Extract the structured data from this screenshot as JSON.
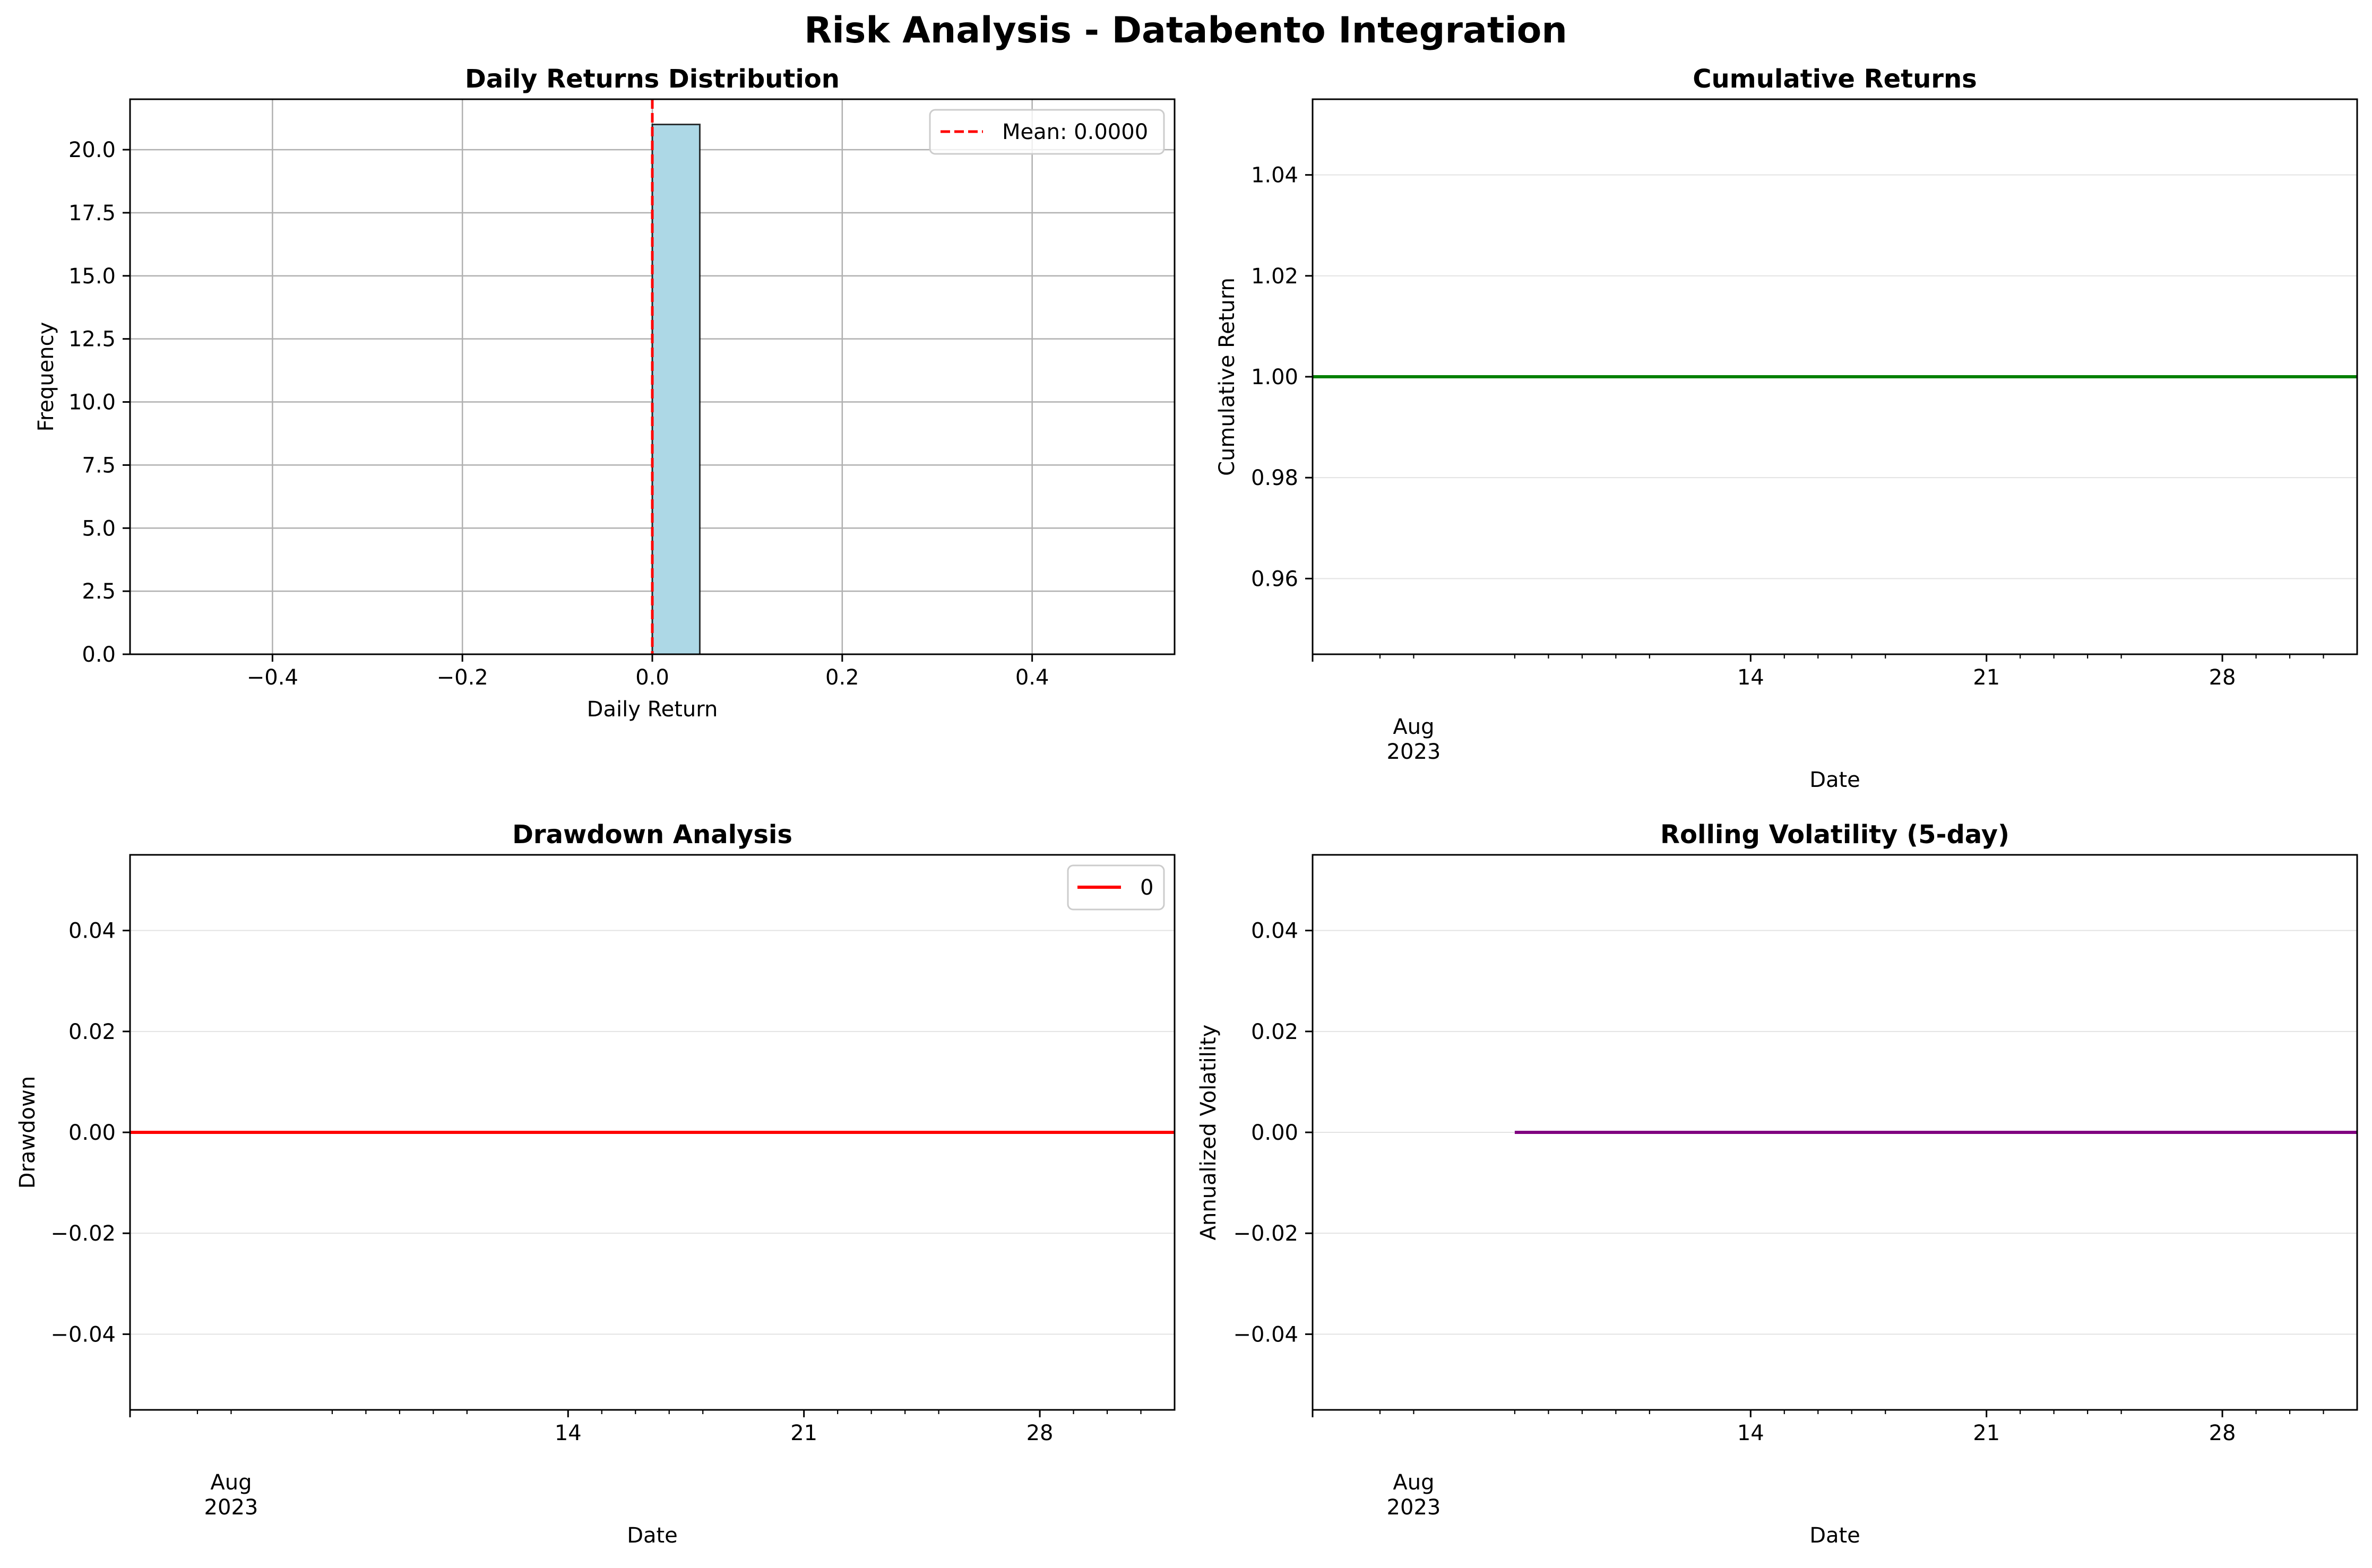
{
  "figure": {
    "suptitle": "Risk Analysis - Databento Integration"
  },
  "colors": {
    "hist_fill": "#add8e6",
    "hist_edge": "#000000",
    "mean_line": "#ff0000",
    "cumulative": "#008000",
    "drawdown": "#ff0000",
    "volatility": "#800080",
    "grid": "#b0b0b0"
  },
  "chart_data": [
    {
      "id": "returns-dist",
      "type": "bar",
      "title": "Daily Returns Distribution",
      "xlabel": "Daily Return",
      "ylabel": "Frequency",
      "xlim": [
        -0.55,
        0.55
      ],
      "ylim": [
        0,
        22
      ],
      "grid": "both",
      "bins": [
        {
          "x0": -0.5,
          "x1": -0.45,
          "count": 0
        },
        {
          "x0": -0.45,
          "x1": -0.4,
          "count": 0
        },
        {
          "x0": -0.4,
          "x1": -0.35,
          "count": 0
        },
        {
          "x0": -0.35,
          "x1": -0.3,
          "count": 0
        },
        {
          "x0": -0.3,
          "x1": -0.25,
          "count": 0
        },
        {
          "x0": -0.25,
          "x1": -0.2,
          "count": 0
        },
        {
          "x0": -0.2,
          "x1": -0.15,
          "count": 0
        },
        {
          "x0": -0.15,
          "x1": -0.1,
          "count": 0
        },
        {
          "x0": -0.1,
          "x1": -0.05,
          "count": 0
        },
        {
          "x0": -0.05,
          "x1": 0.0,
          "count": 0
        },
        {
          "x0": 0.0,
          "x1": 0.05,
          "count": 21
        },
        {
          "x0": 0.05,
          "x1": 0.1,
          "count": 0
        },
        {
          "x0": 0.1,
          "x1": 0.15,
          "count": 0
        },
        {
          "x0": 0.15,
          "x1": 0.2,
          "count": 0
        },
        {
          "x0": 0.2,
          "x1": 0.25,
          "count": 0
        },
        {
          "x0": 0.25,
          "x1": 0.3,
          "count": 0
        },
        {
          "x0": 0.3,
          "x1": 0.35,
          "count": 0
        },
        {
          "x0": 0.35,
          "x1": 0.4,
          "count": 0
        },
        {
          "x0": 0.4,
          "x1": 0.45,
          "count": 0
        },
        {
          "x0": 0.45,
          "x1": 0.5,
          "count": 0
        }
      ],
      "mean_line": {
        "x": 0.0,
        "label": "Mean: 0.0000"
      },
      "legend": "top-right",
      "xticks": [
        {
          "value": -0.4,
          "label": "−0.4"
        },
        {
          "value": -0.2,
          "label": "−0.2"
        },
        {
          "value": 0.0,
          "label": "0.0"
        },
        {
          "value": 0.2,
          "label": "0.2"
        },
        {
          "value": 0.4,
          "label": "0.4"
        }
      ],
      "yticks": [
        {
          "value": 0.0,
          "label": "0.0"
        },
        {
          "value": 2.5,
          "label": "2.5"
        },
        {
          "value": 5.0,
          "label": "5.0"
        },
        {
          "value": 7.5,
          "label": "7.5"
        },
        {
          "value": 10.0,
          "label": "10.0"
        },
        {
          "value": 12.5,
          "label": "12.5"
        },
        {
          "value": 15.0,
          "label": "15.0"
        },
        {
          "value": 17.5,
          "label": "17.5"
        },
        {
          "value": 20.0,
          "label": "20.0"
        }
      ]
    },
    {
      "id": "cumulative",
      "type": "line",
      "title": "Cumulative Returns",
      "xlabel": "Date",
      "ylabel": "Cumulative Return",
      "xlim": [
        "2023-08-01",
        "2023-09-01"
      ],
      "ylim": [
        0.945,
        1.055
      ],
      "grid": "y",
      "series": [
        {
          "x": [
            "2023-08-01",
            "2023-09-01"
          ],
          "y": [
            1.0,
            1.0
          ]
        }
      ],
      "xticks": [
        {
          "value": "2023-08-01",
          "label": ""
        },
        {
          "value": "2023-08-14",
          "label": "14"
        },
        {
          "value": "2023-08-21",
          "label": "21"
        },
        {
          "value": "2023-08-28",
          "label": "28"
        }
      ],
      "xminor": [
        "2023-08-03",
        "2023-08-04",
        "2023-08-07",
        "2023-08-08",
        "2023-08-09",
        "2023-08-10",
        "2023-08-11",
        "2023-08-15",
        "2023-08-16",
        "2023-08-17",
        "2023-08-18",
        "2023-08-22",
        "2023-08-23",
        "2023-08-24",
        "2023-08-25",
        "2023-08-29",
        "2023-08-30",
        "2023-08-31"
      ],
      "month_label": {
        "value": "2023-08-04",
        "line1": "Aug",
        "line2": "2023"
      },
      "yticks": [
        {
          "value": 0.96,
          "label": "0.96"
        },
        {
          "value": 0.98,
          "label": "0.98"
        },
        {
          "value": 1.0,
          "label": "1.00"
        },
        {
          "value": 1.02,
          "label": "1.02"
        },
        {
          "value": 1.04,
          "label": "1.04"
        }
      ]
    },
    {
      "id": "drawdown",
      "type": "line",
      "title": "Drawdown Analysis",
      "xlabel": "Date",
      "ylabel": "Drawdown",
      "xlim": [
        "2023-08-01",
        "2023-09-01"
      ],
      "ylim": [
        -0.055,
        0.055
      ],
      "grid": "y",
      "series": [
        {
          "name": "0",
          "x": [
            "2023-08-01",
            "2023-09-01"
          ],
          "y": [
            0.0,
            0.0
          ]
        }
      ],
      "legend": "top-right",
      "xticks": [
        {
          "value": "2023-08-01",
          "label": ""
        },
        {
          "value": "2023-08-14",
          "label": "14"
        },
        {
          "value": "2023-08-21",
          "label": "21"
        },
        {
          "value": "2023-08-28",
          "label": "28"
        }
      ],
      "xminor": [
        "2023-08-03",
        "2023-08-04",
        "2023-08-07",
        "2023-08-08",
        "2023-08-09",
        "2023-08-10",
        "2023-08-11",
        "2023-08-15",
        "2023-08-16",
        "2023-08-17",
        "2023-08-18",
        "2023-08-22",
        "2023-08-23",
        "2023-08-24",
        "2023-08-25",
        "2023-08-29",
        "2023-08-30",
        "2023-08-31"
      ],
      "month_label": {
        "value": "2023-08-04",
        "line1": "Aug",
        "line2": "2023"
      },
      "yticks": [
        {
          "value": -0.04,
          "label": "−0.04"
        },
        {
          "value": -0.02,
          "label": "−0.02"
        },
        {
          "value": 0.0,
          "label": "0.00"
        },
        {
          "value": 0.02,
          "label": "0.02"
        },
        {
          "value": 0.04,
          "label": "0.04"
        }
      ]
    },
    {
      "id": "volatility",
      "type": "line",
      "title": "Rolling Volatility (5-day)",
      "xlabel": "Date",
      "ylabel": "Annualized Volatility",
      "xlim": [
        "2023-08-01",
        "2023-09-01"
      ],
      "ylim": [
        -0.055,
        0.055
      ],
      "grid": "y",
      "series": [
        {
          "x": [
            "2023-08-07",
            "2023-09-01"
          ],
          "y": [
            0.0,
            0.0
          ]
        }
      ],
      "xticks": [
        {
          "value": "2023-08-01",
          "label": ""
        },
        {
          "value": "2023-08-14",
          "label": "14"
        },
        {
          "value": "2023-08-21",
          "label": "21"
        },
        {
          "value": "2023-08-28",
          "label": "28"
        }
      ],
      "xminor": [
        "2023-08-03",
        "2023-08-04",
        "2023-08-07",
        "2023-08-08",
        "2023-08-09",
        "2023-08-10",
        "2023-08-11",
        "2023-08-15",
        "2023-08-16",
        "2023-08-17",
        "2023-08-18",
        "2023-08-22",
        "2023-08-23",
        "2023-08-24",
        "2023-08-25",
        "2023-08-29",
        "2023-08-30",
        "2023-08-31"
      ],
      "month_label": {
        "value": "2023-08-04",
        "line1": "Aug",
        "line2": "2023"
      },
      "yticks": [
        {
          "value": -0.04,
          "label": "−0.04"
        },
        {
          "value": -0.02,
          "label": "−0.02"
        },
        {
          "value": 0.0,
          "label": "0.00"
        },
        {
          "value": 0.02,
          "label": "0.02"
        },
        {
          "value": 0.04,
          "label": "0.04"
        }
      ]
    }
  ]
}
